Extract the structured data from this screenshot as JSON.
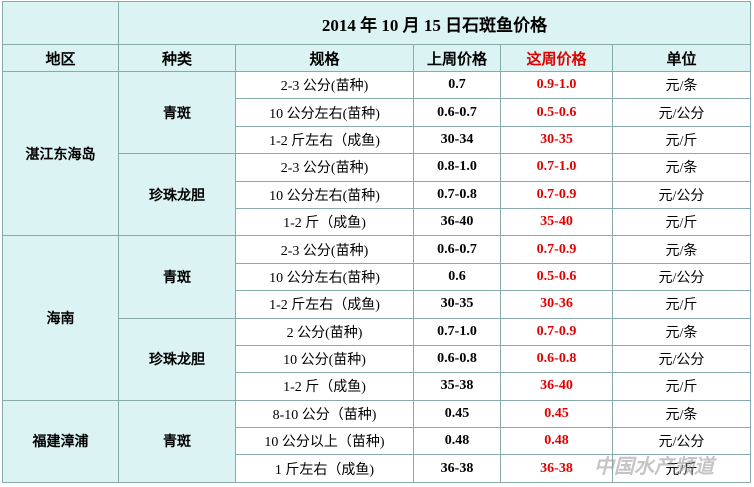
{
  "title": "2014 年 10 月 15 日石斑鱼价格",
  "headers": [
    "地区",
    "种类",
    "规格",
    "上周价格",
    "这周价格",
    "单位"
  ],
  "groups": [
    {
      "region": "湛江东海岛",
      "types": [
        {
          "name": "青斑",
          "rows": [
            [
              "2-3 公分(苗种)",
              "0.7",
              "0.9-1.0",
              "元/条"
            ],
            [
              "10 公分左右(苗种)",
              "0.6-0.7",
              "0.5-0.6",
              "元/公分"
            ],
            [
              "1-2 斤左右（成鱼)",
              "30-34",
              "30-35",
              "元/斤"
            ]
          ]
        },
        {
          "name": "珍珠龙胆",
          "rows": [
            [
              "2-3 公分(苗种)",
              "0.8-1.0",
              "0.7-1.0",
              "元/条"
            ],
            [
              "10 公分左右(苗种)",
              "0.7-0.8",
              "0.7-0.9",
              "元/公分"
            ],
            [
              "1-2 斤（成鱼)",
              "36-40",
              "35-40",
              "元/斤"
            ]
          ]
        }
      ]
    },
    {
      "region": "海南",
      "types": [
        {
          "name": "青斑",
          "rows": [
            [
              "2-3 公分(苗种)",
              "0.6-0.7",
              "0.7-0.9",
              "元/条"
            ],
            [
              "10 公分左右(苗种)",
              "0.6",
              "0.5-0.6",
              "元/公分"
            ],
            [
              "1-2 斤左右（成鱼)",
              "30-35",
              "30-36",
              "元/斤"
            ]
          ]
        },
        {
          "name": "珍珠龙胆",
          "rows": [
            [
              "2 公分(苗种)",
              "0.7-1.0",
              "0.7-0.9",
              "元/条"
            ],
            [
              "10 公分(苗种)",
              "0.6-0.8",
              "0.6-0.8",
              "元/公分"
            ],
            [
              "1-2 斤（成鱼)",
              "35-38",
              "36-40",
              "元/斤"
            ]
          ]
        }
      ]
    },
    {
      "region": "福建漳浦",
      "types": [
        {
          "name": "青斑",
          "rows": [
            [
              "8-10 公分（苗种)",
              "0.45",
              "0.45",
              "元/条"
            ],
            [
              "10 公分以上（苗种)",
              "0.48",
              "0.48",
              "元/公分"
            ],
            [
              "1 斤左右（成鱼)",
              "36-38",
              "36-38",
              "元/斤"
            ]
          ]
        }
      ]
    }
  ],
  "watermark": "中国水产频道"
}
